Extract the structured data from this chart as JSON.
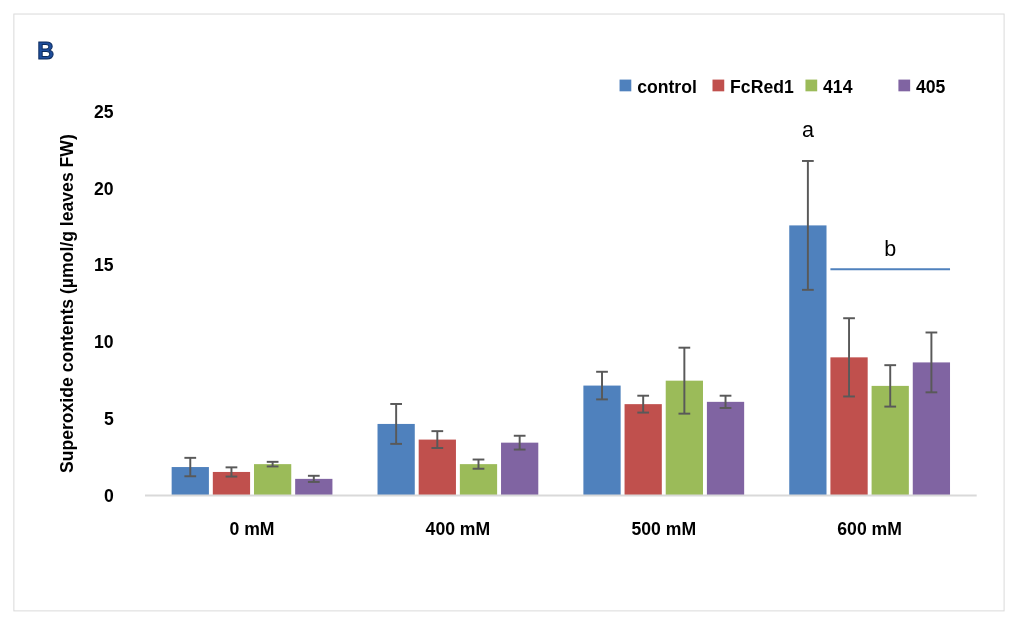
{
  "chart_data": {
    "type": "bar",
    "ylabel": "Superoxide contents (µmol/g leaves FW)",
    "categories": [
      "0 mM",
      "400 mM",
      "500 mM",
      "600 mM"
    ],
    "series": [
      {
        "name": "control",
        "color": "#4f81bd",
        "values": [
          1.85,
          4.66,
          7.16,
          17.6
        ],
        "errors": [
          0.6,
          1.3,
          0.9,
          4.2
        ]
      },
      {
        "name": "FcRed1",
        "color": "#c0504d",
        "values": [
          1.53,
          3.64,
          5.95,
          9.0
        ],
        "errors": [
          0.3,
          0.55,
          0.55,
          2.55
        ]
      },
      {
        "name": "414",
        "color": "#9bbb59",
        "values": [
          2.04,
          2.04,
          7.48,
          7.14
        ],
        "errors": [
          0.15,
          0.3,
          2.15,
          1.35
        ]
      },
      {
        "name": "405",
        "color": "#8064a2",
        "values": [
          1.08,
          3.44,
          6.1,
          8.67
        ],
        "errors": [
          0.2,
          0.45,
          0.4,
          1.95
        ]
      }
    ],
    "ylim": [
      0,
      25
    ],
    "yticks": [
      0,
      5,
      10,
      15,
      20,
      25
    ],
    "grid": false,
    "legend": "top right",
    "annotations": [
      "B",
      "a",
      "b"
    ]
  }
}
